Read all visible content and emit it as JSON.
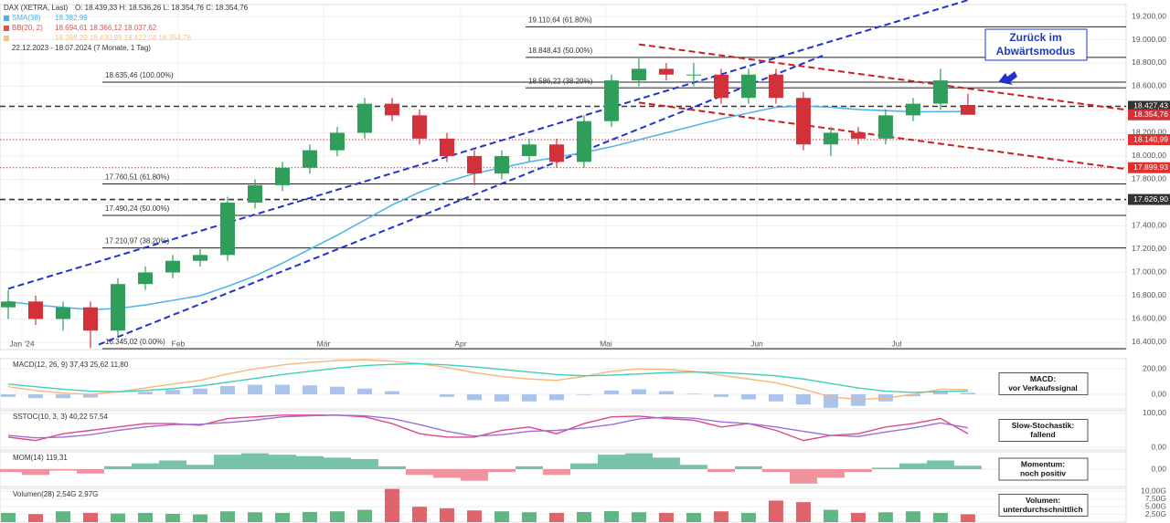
{
  "chart_data": [
    {
      "type": "candlestick",
      "title": "DAX (XETRA, Last)",
      "ohlc_label": "O: 18.439,33  H: 18.536,26  L: 18.354,76  C: 18.354,76",
      "legend_lines": [
        {
          "name": "SMA(38)",
          "label": "18.382,99",
          "color": "#4ab3e8"
        },
        {
          "name": "BB(20, 2)",
          "label": "18.694,61  18.366,12  18.037,62",
          "color": "#d9534f"
        },
        {
          "name": "",
          "label": "18.366,29  18.430,99  18.422,04  18.354,76",
          "color": "#f2c48a"
        }
      ],
      "period": "22.12.2023 - 18.07.2024 (7 Monate, 1 Tag)",
      "up_color": "#2e9e5a",
      "down_color": "#d3313a",
      "open": [
        16700,
        16750,
        16600,
        16700,
        16500,
        16900,
        17000,
        17100,
        17150,
        17600,
        17750,
        17900,
        18050,
        18200,
        18450,
        18350,
        18150,
        18000,
        17850,
        18000,
        18100,
        17950,
        18300,
        18650,
        18750,
        18700,
        18700,
        18500,
        18700,
        18500,
        18100,
        18200,
        18150,
        18350,
        18450,
        18439.33
      ],
      "high": [
        16850,
        16800,
        16750,
        16750,
        16950,
        17050,
        17150,
        17200,
        17650,
        17800,
        17950,
        18100,
        18250,
        18500,
        18500,
        18400,
        18200,
        18050,
        18050,
        18150,
        18150,
        18350,
        18700,
        18850,
        18800,
        18800,
        18750,
        18750,
        18750,
        18550,
        18250,
        18250,
        18400,
        18500,
        18750,
        18536.26
      ],
      "low": [
        16600,
        16550,
        16500,
        16350,
        16450,
        16850,
        16950,
        17050,
        17100,
        17550,
        17700,
        17850,
        18000,
        18150,
        18300,
        18100,
        17950,
        17750,
        17800,
        17950,
        17900,
        17900,
        18250,
        18600,
        18650,
        18600,
        18450,
        18450,
        18450,
        18050,
        18000,
        18100,
        18100,
        18300,
        18400,
        18354.76
      ],
      "close": [
        16750,
        16600,
        16700,
        16500,
        16900,
        17000,
        17100,
        17150,
        17600,
        17750,
        17900,
        18050,
        18200,
        18450,
        18350,
        18150,
        18000,
        17850,
        18000,
        18100,
        17950,
        18300,
        18650,
        18750,
        18700,
        18700,
        18500,
        18700,
        18500,
        18100,
        18200,
        18150,
        18350,
        18450,
        18650,
        18354.76
      ],
      "series": [
        {
          "name": "SMA(38)",
          "color": "#4ab3e8",
          "values": [
            16750,
            16720,
            16700,
            16680,
            16690,
            16720,
            16760,
            16800,
            16880,
            16970,
            17080,
            17200,
            17320,
            17450,
            17580,
            17690,
            17780,
            17850,
            17900,
            17950,
            17990,
            18030,
            18080,
            18140,
            18200,
            18260,
            18320,
            18370,
            18420,
            18430,
            18420,
            18400,
            18390,
            18380,
            18382,
            18382.99
          ]
        }
      ],
      "xlim": [
        -0.3,
        40.77
      ],
      "xticks": [
        {
          "value": 0.5,
          "label": "Jan '24"
        },
        {
          "value": 6.2,
          "label": "Feb"
        },
        {
          "value": 11.5,
          "label": "Mär"
        },
        {
          "value": 16.5,
          "label": "Apr"
        },
        {
          "value": 21.8,
          "label": "Mai"
        },
        {
          "value": 27.3,
          "label": "Jun"
        },
        {
          "value": 32.4,
          "label": "Jul"
        }
      ],
      "ylim": [
        16337,
        19302
      ],
      "yticks": [
        {
          "value": 19200,
          "label": "19.200,00"
        },
        {
          "value": 19000,
          "label": "19.000,00"
        },
        {
          "value": 18800,
          "label": "18.800,00"
        },
        {
          "value": 18600,
          "label": "18.600,00"
        },
        {
          "value": 18400,
          "label": "18.400,00"
        },
        {
          "value": 18200,
          "label": "18.200,00"
        },
        {
          "value": 18000,
          "label": "18.000,00"
        },
        {
          "value": 17800,
          "label": "17.800,00"
        },
        {
          "value": 17600,
          "label": "17.600,00"
        },
        {
          "value": 17400,
          "label": "17.400,00"
        },
        {
          "value": 17200,
          "label": "17.200,00"
        },
        {
          "value": 17000,
          "label": "17.000,00"
        },
        {
          "value": 16800,
          "label": "16.800,00"
        },
        {
          "value": 16600,
          "label": "16.600,00"
        },
        {
          "value": 16400,
          "label": "16.400,00"
        }
      ],
      "fib_upper": [
        {
          "value": 19110.64,
          "label": "19.110,64 (61.80%)"
        },
        {
          "value": 18848.43,
          "label": "18.848,43 (50.00%)"
        },
        {
          "value": 18586.22,
          "label": "18.586,22 (38.20%)"
        }
      ],
      "fib_lower": [
        {
          "value": 18635.46,
          "label": "18.635,46 (100.00%)"
        },
        {
          "value": 17760.51,
          "label": "17.760,51 (61.80%)"
        },
        {
          "value": 17490.24,
          "label": "17.490,24 (50.00%)"
        },
        {
          "value": 17210.97,
          "label": "17.210,97 (38.20%)"
        },
        {
          "value": 16345.02,
          "label": "16.345,02 (0.00%)"
        }
      ],
      "hlines": [
        {
          "value": 18427.43,
          "label": "18.427,43",
          "color": "#333333",
          "style": "dashed"
        },
        {
          "value": 18354.76,
          "label": "18.354,76",
          "color": "#d3313a",
          "style": "none"
        },
        {
          "value": 18140.99,
          "label": "18.140,99",
          "color": "#e03030",
          "style": "dotted"
        },
        {
          "value": 17899.93,
          "label": "17.899,93",
          "color": "#e03030",
          "style": "dotted"
        },
        {
          "value": 17626.9,
          "label": "17.626,90",
          "color": "#333333",
          "style": "dashed"
        }
      ],
      "trendlines": [
        {
          "color": "#2233cc",
          "points": [
            [
              0,
              16860
            ],
            [
              35,
              19340
            ]
          ]
        },
        {
          "color": "#2233cc",
          "points": [
            [
              3.3,
              16380
            ],
            [
              29.7,
              18863
            ]
          ]
        },
        {
          "color": "#cc1f1f",
          "points": [
            [
              23,
              18960
            ],
            [
              40.7,
              18400
            ]
          ]
        },
        {
          "color": "#cc1f1f",
          "points": [
            [
              23,
              18460
            ],
            [
              40.7,
              17890
            ]
          ]
        }
      ],
      "annotation": [
        "Zurück im",
        "Abwärtsmodus"
      ]
    },
    {
      "type": "macd",
      "title": "MACD(12, 26, 9)  37,43  25,62  11,80",
      "note": [
        "MACD:",
        "vor Verkaufssignal"
      ],
      "xlim": [
        -0.3,
        40.77
      ],
      "ylim": [
        -114,
        279
      ],
      "yticks": [
        {
          "value": 200,
          "label": "200,00"
        },
        {
          "value": 0,
          "label": "0,00"
        }
      ],
      "series": [
        {
          "name": "MACD",
          "color": "#f5b87a",
          "values": [
            60,
            30,
            10,
            0,
            20,
            50,
            80,
            110,
            160,
            200,
            230,
            250,
            265,
            270,
            260,
            240,
            210,
            170,
            140,
            120,
            110,
            140,
            180,
            200,
            195,
            180,
            150,
            120,
            90,
            40,
            -20,
            -40,
            -30,
            0,
            40,
            37.43
          ]
        },
        {
          "name": "Signal",
          "color": "#3fd1b8",
          "values": [
            80,
            60,
            40,
            25,
            20,
            30,
            45,
            65,
            95,
            125,
            155,
            180,
            205,
            225,
            235,
            240,
            230,
            215,
            195,
            175,
            155,
            145,
            150,
            160,
            170,
            175,
            170,
            160,
            145,
            120,
            85,
            50,
            25,
            15,
            22,
            25.62
          ]
        }
      ],
      "histogram": {
        "color": "#a9c3ea",
        "values": [
          -20,
          -30,
          -30,
          -25,
          0,
          20,
          35,
          45,
          65,
          75,
          75,
          70,
          60,
          45,
          25,
          0,
          -20,
          -45,
          -55,
          -55,
          -45,
          -5,
          30,
          40,
          25,
          5,
          -20,
          -40,
          -55,
          -80,
          -105,
          -90,
          -55,
          -15,
          18,
          11.8
        ]
      }
    },
    {
      "type": "line",
      "title": "SSTOC(10, 3, 3)  40,22  57,54",
      "note": [
        "Slow-Stochastik:",
        "fallend"
      ],
      "xlim": [
        -0.3,
        40.77
      ],
      "ylim": [
        -8,
        108
      ],
      "yticks": [
        {
          "value": 100,
          "label": "100,00"
        },
        {
          "value": 0,
          "label": "0,00"
        }
      ],
      "series": [
        {
          "name": "%K",
          "color": "#e0478c",
          "values": [
            30,
            20,
            40,
            50,
            60,
            70,
            70,
            65,
            85,
            90,
            95,
            95,
            95,
            90,
            70,
            40,
            30,
            30,
            50,
            60,
            40,
            70,
            90,
            92,
            85,
            80,
            60,
            70,
            50,
            20,
            35,
            40,
            60,
            70,
            85,
            40.22
          ]
        },
        {
          "name": "%D",
          "color": "#9b6fd6",
          "values": [
            35,
            28,
            30,
            37,
            50,
            60,
            67,
            68,
            73,
            80,
            90,
            93,
            95,
            93,
            85,
            67,
            47,
            33,
            37,
            47,
            50,
            57,
            67,
            84,
            89,
            86,
            75,
            70,
            60,
            47,
            35,
            32,
            45,
            57,
            72,
            57.54
          ]
        }
      ]
    },
    {
      "type": "area",
      "title": "MOM(14)  119,31",
      "note": [
        "Momentum:",
        "noch positiv"
      ],
      "xlim": [
        -0.3,
        40.77
      ],
      "ylim": [
        -600,
        600
      ],
      "yticks": [
        {
          "value": 0,
          "label": "0,00"
        }
      ],
      "pos_color": "#5fb99a",
      "neg_color": "#ef7f8e",
      "values": [
        -100,
        -200,
        -50,
        -150,
        100,
        200,
        300,
        150,
        500,
        550,
        500,
        450,
        400,
        350,
        100,
        -200,
        -300,
        -400,
        -100,
        100,
        -200,
        200,
        500,
        550,
        400,
        150,
        -100,
        100,
        -100,
        -500,
        -300,
        -100,
        50,
        200,
        300,
        119.31
      ]
    },
    {
      "type": "volume",
      "title": "Volumen(28)  2,54G  2,97G",
      "note": [
        "Volumen:",
        "unterdurchschnittlich"
      ],
      "xlim": [
        -0.3,
        40.77
      ],
      "ylim": [
        0,
        11
      ],
      "yticks": [
        {
          "value": 10,
          "label": "10,00G"
        },
        {
          "value": 7.5,
          "label": "7,50G"
        },
        {
          "value": 5,
          "label": "5,00G"
        },
        {
          "value": 2.5,
          "label": "2,50G"
        }
      ],
      "values": [
        3,
        2.6,
        3.5,
        3,
        2.8,
        3,
        2.7,
        2.5,
        3.5,
        3.2,
        3,
        3.3,
        3.5,
        4,
        10.8,
        5,
        4.5,
        3.8,
        3.5,
        3.2,
        3,
        3.3,
        3.6,
        3.2,
        3,
        3,
        3.5,
        3,
        7,
        6.5,
        4,
        3,
        3.2,
        3.5,
        3,
        2.54
      ]
    }
  ]
}
